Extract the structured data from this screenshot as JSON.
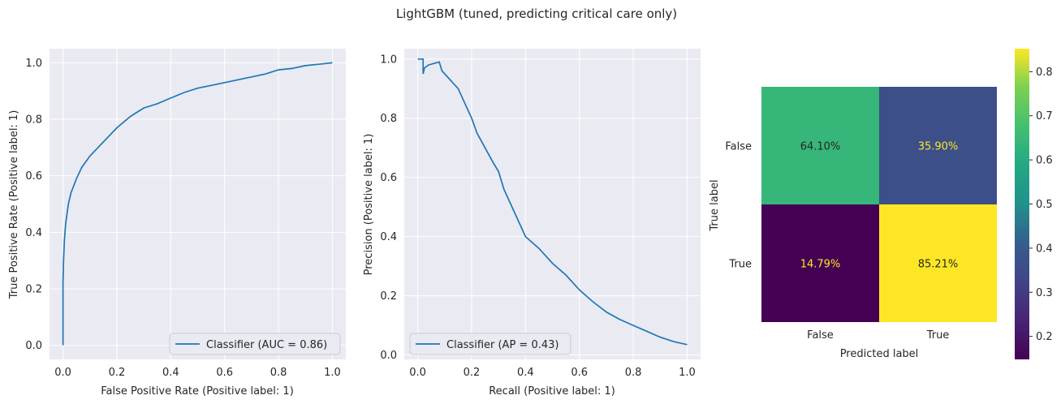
{
  "figure": {
    "title": "LightGBM (tuned, predicting critical care only)"
  },
  "chart_data": [
    {
      "type": "line",
      "name": "roc",
      "xlabel": "False Positive Rate (Positive label: 1)",
      "ylabel": "True Positive Rate (Positive label: 1)",
      "xlim": [
        -0.05,
        1.05
      ],
      "ylim": [
        -0.05,
        1.05
      ],
      "xticks": [
        "0.0",
        "0.2",
        "0.4",
        "0.6",
        "0.8",
        "1.0"
      ],
      "yticks": [
        "0.0",
        "0.2",
        "0.4",
        "0.6",
        "0.8",
        "1.0"
      ],
      "grid": true,
      "legend": "lower right",
      "series": [
        {
          "name": "Classifier (AUC = 0.86)",
          "color": "#1f77b4",
          "x": [
            0,
            0,
            0.002,
            0.005,
            0.01,
            0.02,
            0.03,
            0.05,
            0.07,
            0.1,
            0.13,
            0.15,
            0.2,
            0.25,
            0.3,
            0.35,
            0.4,
            0.45,
            0.5,
            0.55,
            0.6,
            0.65,
            0.7,
            0.75,
            0.8,
            0.85,
            0.9,
            0.95,
            1.0
          ],
          "y": [
            0,
            0.22,
            0.3,
            0.37,
            0.43,
            0.5,
            0.54,
            0.59,
            0.63,
            0.67,
            0.7,
            0.72,
            0.77,
            0.81,
            0.84,
            0.855,
            0.875,
            0.895,
            0.91,
            0.92,
            0.93,
            0.94,
            0.95,
            0.96,
            0.975,
            0.98,
            0.99,
            0.995,
            1.0
          ]
        }
      ]
    },
    {
      "type": "line",
      "name": "precision-recall",
      "xlabel": "Recall (Positive label: 1)",
      "ylabel": "Precision (Positive label: 1)",
      "xlim": [
        -0.05,
        1.05
      ],
      "ylim": [
        -0.015,
        1.035
      ],
      "xticks": [
        "0.0",
        "0.2",
        "0.4",
        "0.6",
        "0.8",
        "1.0"
      ],
      "yticks": [
        "0.0",
        "0.2",
        "0.4",
        "0.6",
        "0.8",
        "1.0"
      ],
      "grid": true,
      "legend": "lower left",
      "series": [
        {
          "name": "Classifier (AP = 0.43)",
          "color": "#1f77b4",
          "x": [
            0,
            0.02,
            0.02,
            0.025,
            0.04,
            0.06,
            0.08,
            0.09,
            0.1,
            0.12,
            0.15,
            0.17,
            0.2,
            0.22,
            0.25,
            0.28,
            0.3,
            0.32,
            0.35,
            0.38,
            0.4,
            0.45,
            0.5,
            0.55,
            0.6,
            0.65,
            0.7,
            0.75,
            0.8,
            0.85,
            0.9,
            0.95,
            1.0
          ],
          "y": [
            1.0,
            1.0,
            0.95,
            0.97,
            0.98,
            0.985,
            0.99,
            0.96,
            0.95,
            0.93,
            0.9,
            0.86,
            0.8,
            0.75,
            0.7,
            0.65,
            0.62,
            0.56,
            0.5,
            0.44,
            0.4,
            0.36,
            0.31,
            0.27,
            0.22,
            0.18,
            0.145,
            0.12,
            0.1,
            0.08,
            0.06,
            0.045,
            0.035
          ]
        }
      ]
    },
    {
      "type": "heatmap",
      "name": "confusion-matrix",
      "xlabel": "Predicted label",
      "ylabel": "True label",
      "xcategories": [
        "False",
        "True"
      ],
      "ycategories": [
        "False",
        "True"
      ],
      "values": [
        [
          0.641,
          0.359
        ],
        [
          0.1479,
          0.8521
        ]
      ],
      "cell_labels": [
        [
          "64.10%",
          "35.90%"
        ],
        [
          "14.79%",
          "85.21%"
        ]
      ],
      "colormap": "viridis",
      "colorbar": {
        "range": [
          0.1479,
          0.8521
        ],
        "ticks": [
          "0.2",
          "0.3",
          "0.4",
          "0.5",
          "0.6",
          "0.7",
          "0.8"
        ]
      }
    }
  ]
}
